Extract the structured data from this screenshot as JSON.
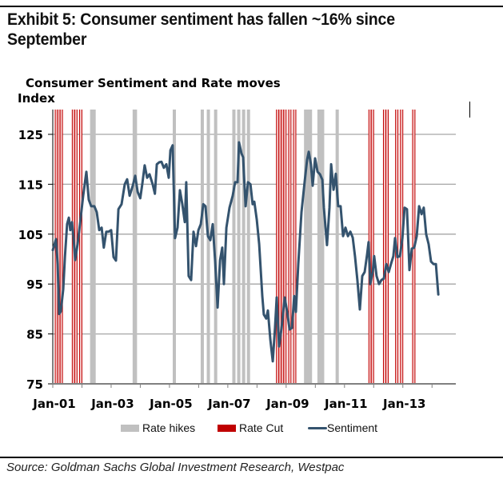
{
  "header": {
    "exhibit_title": "Exhibit 5: Consumer sentiment has fallen ~16% since September"
  },
  "footer": {
    "source": "Source: Goldman Sachs Global Investment Research, Westpac"
  },
  "colors": {
    "sentiment": "#34536e",
    "rate_hike": "#c0c0c0",
    "rate_cut": "#c00000",
    "rate_cut_fill": "#f4c9c9",
    "grid": "#a6a6a6",
    "axis": "#808080"
  },
  "chart_data": {
    "type": "line",
    "title": "Consumer Sentiment and Rate moves",
    "ylabel": "Index",
    "xlabel": "",
    "ylim": [
      75,
      130
    ],
    "yticks": [
      75,
      85,
      95,
      105,
      115,
      125
    ],
    "ytick_labels": [
      "75",
      "85",
      "95",
      "105",
      "115",
      "125"
    ],
    "x_unit": "months since Jan-01",
    "xlim": [
      0,
      166
    ],
    "xticks_minor_months": [
      0,
      12,
      24,
      36,
      48,
      60,
      72,
      84,
      96,
      108,
      120,
      132,
      144,
      156
    ],
    "xtick_labels": [
      {
        "month": 0,
        "label": "Jan-01"
      },
      {
        "month": 24,
        "label": "Jan-03"
      },
      {
        "month": 48,
        "label": "Jan-05"
      },
      {
        "month": 72,
        "label": "Jan-07"
      },
      {
        "month": 96,
        "label": "Jan-09"
      },
      {
        "month": 120,
        "label": "Jan-11"
      },
      {
        "month": 144,
        "label": "Jan-13"
      }
    ],
    "grid": true,
    "legend_position": "bottom-center",
    "legend": [
      {
        "key": "hikes",
        "label": "Rate hikes"
      },
      {
        "key": "cuts",
        "label": "Rate Cut"
      },
      {
        "key": "sentiment",
        "label": "Sentiment"
      }
    ],
    "rate_hikes_months": [
      16,
      16.5,
      17,
      33.5,
      34,
      50,
      61.5,
      64,
      67,
      74.5,
      76.5,
      78.5,
      80.5,
      104,
      104.5,
      105,
      105.5,
      106,
      109.5,
      110,
      110.5,
      111,
      117
    ],
    "rate_cuts_months": [
      1.5,
      2.5,
      3.5,
      8.5,
      9.5,
      11.5,
      92.5,
      93.5,
      94.5,
      95.5,
      97.5,
      99.5,
      130.5,
      131.5,
      136.5,
      137.5,
      141.5,
      143.5,
      148.5
    ],
    "series": [
      {
        "name": "Sentiment",
        "x": [
          0,
          1.3,
          2,
          2.6,
          3.3,
          4.3,
          5,
          5.9,
          6.6,
          7.2,
          7.9,
          8.6,
          9.2,
          10.2,
          11.2,
          12.5,
          13.8,
          14.8,
          15.8,
          17.1,
          18.1,
          19.1,
          20.1,
          21,
          22,
          23,
          24,
          25,
          26,
          27,
          28.3,
          29.6,
          30.6,
          31.6,
          32.9,
          33.9,
          34.9,
          36,
          36.8,
          37.8,
          38.8,
          39.8,
          41.1,
          42,
          42.8,
          43.8,
          44.7,
          45.7,
          46.7,
          47.7,
          48.4,
          49.3,
          50.3,
          51.3,
          52.3,
          53.3,
          54.3,
          54.9,
          55.9,
          56.9,
          57.9,
          58.9,
          59.9,
          60.9,
          61.9,
          62.8,
          63.8,
          64.8,
          65.8,
          66.8,
          67.8,
          68.8,
          69.7,
          70.4,
          71.4,
          72.7,
          74,
          75,
          76,
          76.6,
          77.6,
          78.3,
          79.3,
          80.3,
          81.3,
          82.2,
          82.9,
          83.9,
          84.9,
          86.2,
          86.8,
          87.8,
          88.5,
          89.5,
          90.5,
          91.4,
          92.1,
          93.1,
          94.1,
          95.4,
          96.4,
          97.4,
          98.4,
          99.3,
          100,
          101,
          102.3,
          103.6,
          104.6,
          105.3,
          106.2,
          106.9,
          107.9,
          108.9,
          109.9,
          110.9,
          111.5,
          112.8,
          113.8,
          114.5,
          115.5,
          116.4,
          117.4,
          118.4,
          119.4,
          120.4,
          121.4,
          122.4,
          123.4,
          124.3,
          125.3,
          126.3,
          127.3,
          128.3,
          129.3,
          129.9,
          130.6,
          131.6,
          132.2,
          133.2,
          134.2,
          135.2,
          136.2,
          137.2,
          138.2,
          139.1,
          140.1,
          140.8,
          141.8,
          142.8,
          143.8,
          144.7,
          145.7,
          146.7,
          147.7,
          148.7,
          149.7,
          150.7,
          151.7,
          152.6,
          153.6,
          154.6,
          155.6,
          156.6,
          157.6,
          158.6
        ],
        "values": [
          101.8,
          104,
          99,
          89,
          89.5,
          94,
          100.5,
          107,
          108.3,
          105.8,
          107.4,
          104,
          99.8,
          103,
          107,
          112.7,
          117.5,
          111.9,
          110.6,
          110.6,
          109.4,
          105.8,
          106.3,
          102.3,
          105.5,
          105.5,
          105.8,
          100.4,
          99.7,
          110,
          111,
          115,
          116,
          112.7,
          114.7,
          116.7,
          113.5,
          112.2,
          115,
          118.8,
          116.3,
          117,
          115,
          113.1,
          119,
          119.4,
          119.5,
          118.3,
          119,
          116.3,
          121.8,
          122.8,
          104.2,
          106.3,
          113.8,
          111,
          107.4,
          115.4,
          96.6,
          95.8,
          105.5,
          102.6,
          105.8,
          107,
          111,
          110.6,
          104.6,
          103.8,
          107,
          99.4,
          90.3,
          99.8,
          102.3,
          95,
          106.3,
          110.3,
          112.7,
          115.4,
          115.4,
          123.4,
          121.2,
          120.4,
          110.6,
          115.4,
          115,
          111,
          111.5,
          107.9,
          103,
          92.6,
          88.9,
          88.1,
          89.7,
          83.8,
          79.5,
          86.2,
          92.3,
          82.5,
          86.2,
          92.3,
          89.4,
          85.9,
          86.2,
          92.6,
          89.4,
          99,
          109.4,
          115.4,
          119.9,
          121.5,
          119,
          114.7,
          120.2,
          117.5,
          117,
          115.9,
          110.3,
          102.8,
          110.3,
          119,
          113.9,
          117.1,
          110.6,
          110.6,
          104.6,
          106.3,
          104.6,
          105.5,
          104.3,
          100.6,
          95.8,
          89.9,
          96.6,
          97.4,
          101,
          103.4,
          95,
          97.4,
          100.6,
          96.6,
          95,
          95.8,
          96.1,
          99,
          97.4,
          99,
          100.6,
          104.2,
          100.4,
          100.6,
          104.2,
          110.3,
          110,
          97.8,
          102.1,
          102.3,
          104.6,
          110.6,
          109,
          110.3,
          105,
          103,
          99.5,
          99,
          99,
          92.9
        ]
      }
    ]
  }
}
